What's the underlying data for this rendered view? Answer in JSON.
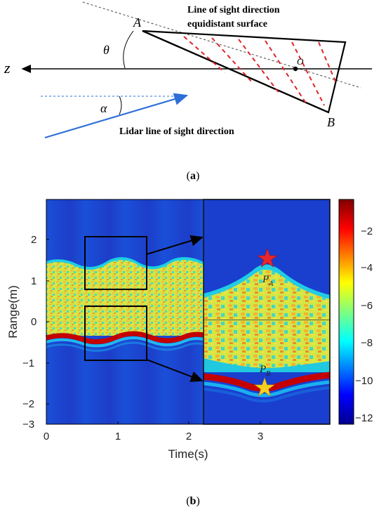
{
  "panel_a": {
    "point_a": "A",
    "point_b": "B",
    "point_o": "O",
    "axis_z": "z",
    "theta": "θ",
    "alpha": "α",
    "caption_line1": "Line of sight direction",
    "caption_line2": "equidistant surface",
    "lidar_label": "Lidar line of sight direction",
    "panel_label": "a"
  },
  "panel_b": {
    "panel_label": "b",
    "inset_label_a": "P",
    "inset_label_a_sub": "A",
    "inset_label_b": "P",
    "inset_label_b_sub": "B"
  },
  "chart_data": {
    "type": "heatmap",
    "xlabel": "Time(s)",
    "ylabel": "Range(m)",
    "xlim": [
      0,
      4
    ],
    "ylim": [
      -3,
      3
    ],
    "xticks": [
      "0",
      "1",
      "2",
      "3"
    ],
    "yticks": [
      "2",
      "1",
      "0",
      "−1",
      "−2",
      "−3"
    ],
    "colorbar_ticks": [
      "−2",
      "−4",
      "−6",
      "−8",
      "−10",
      "−12"
    ],
    "colorbar_range": [
      -13,
      0
    ],
    "colormap": "jet",
    "zoom_boxes": [
      {
        "x_range": [
          0.55,
          1.4
        ],
        "y_range": [
          0.75,
          2.05
        ]
      },
      {
        "x_range": [
          0.55,
          1.4
        ],
        "y_range": [
          -0.95,
          0.35
        ]
      }
    ],
    "markers": [
      {
        "label": "P_A",
        "time": 3.07,
        "range": 1.5,
        "color": "#e8272b"
      },
      {
        "label": "P_B",
        "time": 3.07,
        "range": -1.65,
        "color": "#f5d020"
      }
    ]
  }
}
